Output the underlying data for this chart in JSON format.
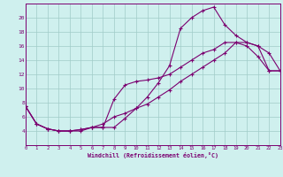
{
  "xlabel": "Windchill (Refroidissement éolien,°C)",
  "bg_color": "#cff0ee",
  "line_color": "#7b0070",
  "grid_color": "#a0ccc8",
  "spine_color": "#7b0070",
  "xmin": 0,
  "xmax": 23,
  "ymin": 2,
  "ymax": 22,
  "yticks": [
    4,
    6,
    8,
    10,
    12,
    14,
    16,
    18,
    20
  ],
  "xticks": [
    0,
    1,
    2,
    3,
    4,
    5,
    6,
    7,
    8,
    9,
    10,
    11,
    12,
    13,
    14,
    15,
    16,
    17,
    18,
    19,
    20,
    21,
    22,
    23
  ],
  "line1_x": [
    0,
    1,
    2,
    3,
    4,
    5,
    6,
    7,
    8,
    9,
    10,
    11,
    12,
    13,
    14,
    15,
    16,
    17,
    18,
    19,
    20,
    21,
    22,
    23
  ],
  "line1_y": [
    7.5,
    5.0,
    4.3,
    4.0,
    4.0,
    4.2,
    4.5,
    4.5,
    4.5,
    5.8,
    7.2,
    8.8,
    10.8,
    13.2,
    18.5,
    20.0,
    21.0,
    21.5,
    19.0,
    17.5,
    16.5,
    16.0,
    15.0,
    12.5
  ],
  "line2_x": [
    0,
    1,
    2,
    3,
    4,
    5,
    6,
    7,
    8,
    9,
    10,
    11,
    12,
    13,
    14,
    15,
    16,
    17,
    18,
    19,
    20,
    21,
    22,
    23
  ],
  "line2_y": [
    7.5,
    5.0,
    4.3,
    4.0,
    4.0,
    4.2,
    4.5,
    4.5,
    8.5,
    10.5,
    11.0,
    11.2,
    11.5,
    12.0,
    13.0,
    14.0,
    15.0,
    15.5,
    16.5,
    16.5,
    16.0,
    14.5,
    12.5,
    12.5
  ],
  "line3_x": [
    0,
    1,
    2,
    3,
    4,
    5,
    6,
    7,
    8,
    9,
    10,
    11,
    12,
    13,
    14,
    15,
    16,
    17,
    18,
    19,
    20,
    21,
    22,
    23
  ],
  "line3_y": [
    7.5,
    5.0,
    4.3,
    4.0,
    4.0,
    4.0,
    4.5,
    5.0,
    6.0,
    6.5,
    7.2,
    7.8,
    8.8,
    9.8,
    11.0,
    12.0,
    13.0,
    14.0,
    15.0,
    16.5,
    16.5,
    16.0,
    12.5,
    12.5
  ]
}
